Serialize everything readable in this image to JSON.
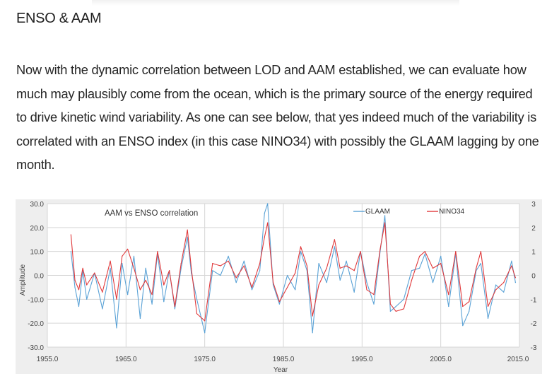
{
  "article": {
    "heading": "ENSO & AAM",
    "paragraph": "Now with the dynamic correlation between LOD and AAM established, we can evaluate how much may plausibly come from the ocean, which is the primary source of the energy required to drive kinetic wind variability. As one can see below, that yes indeed much of the variability is correlated with an ENSO index (in this case NINO34) with possibly the GLAAM lagging by one month."
  },
  "colors": {
    "glaam": "#5aa2d6",
    "nino34": "#e0393b",
    "grid": "#d6d6d6",
    "plot_bg": "#ffffff",
    "frame_bg": "#eeeeee"
  },
  "chart_data": {
    "type": "line",
    "title": "AAM vs ENSO correlation",
    "xlabel": "Year",
    "ylabel": "Amplitude",
    "xlim": [
      1955,
      2015
    ],
    "ylim": [
      -30,
      30
    ],
    "y2lim": [
      -3,
      3
    ],
    "x_ticks": [
      "1955.0",
      "1965.0",
      "1975.0",
      "1985.0",
      "1995.0",
      "2005.0",
      "2015.0"
    ],
    "y_ticks": [
      "30.0",
      "20.0",
      "10.0",
      "0.0",
      "-10.0",
      "-20.0",
      "-30.0"
    ],
    "y2_ticks": [
      "3",
      "2",
      "1",
      "0",
      "-1",
      "-2",
      "-3"
    ],
    "legend": [
      "GLAAM",
      "NINO34"
    ],
    "legend_position": "top-right",
    "grid": true,
    "series": [
      {
        "name": "GLAAM",
        "axis": "left",
        "x": [
          1958.0,
          1958.5,
          1959.0,
          1959.5,
          1960.0,
          1961.0,
          1962.0,
          1963.0,
          1963.8,
          1964.5,
          1965.2,
          1966.0,
          1966.8,
          1967.5,
          1968.3,
          1969.0,
          1969.8,
          1970.5,
          1971.2,
          1972.0,
          1972.8,
          1973.3,
          1974.0,
          1975.0,
          1976.0,
          1977.0,
          1978.0,
          1979.0,
          1980.0,
          1981.0,
          1982.0,
          1982.6,
          1983.0,
          1983.7,
          1984.5,
          1985.5,
          1986.5,
          1987.2,
          1988.0,
          1988.7,
          1989.5,
          1990.5,
          1991.5,
          1992.2,
          1993.0,
          1994.0,
          1994.8,
          1995.6,
          1996.5,
          1997.3,
          1997.9,
          1998.6,
          1999.3,
          2000.3,
          2001.3,
          2002.3,
          2003.0,
          2004.0,
          2005.0,
          2006.0,
          2006.9,
          2007.8,
          2008.6,
          2009.5,
          2010.1,
          2011.0,
          2012.0,
          2013.0,
          2014.0,
          2014.5
        ],
        "values": [
          10,
          -5,
          -13,
          2,
          -10,
          1,
          -14,
          3,
          -22,
          5,
          -8,
          8,
          -18,
          3,
          -12,
          9,
          -11,
          2,
          -14,
          3,
          16,
          1,
          -10,
          -24,
          2,
          0,
          8,
          -3,
          6,
          -6,
          2,
          26,
          31,
          -4,
          -12,
          0,
          -6,
          10,
          2,
          -24,
          5,
          -3,
          12,
          -2,
          6,
          -7,
          10,
          -3,
          -12,
          10,
          25,
          -15,
          -13,
          -10,
          2,
          3,
          9,
          -3,
          8,
          -13,
          9,
          -21,
          -15,
          2,
          5,
          -18,
          -4,
          -7,
          6,
          -3
        ]
      },
      {
        "name": "NINO34",
        "axis": "right",
        "x": [
          1958.0,
          1958.5,
          1959.0,
          1959.5,
          1960.0,
          1961.0,
          1962.0,
          1963.0,
          1963.8,
          1964.5,
          1965.2,
          1966.0,
          1966.8,
          1967.5,
          1968.3,
          1969.0,
          1969.8,
          1970.5,
          1971.2,
          1972.0,
          1972.8,
          1973.3,
          1974.0,
          1975.0,
          1976.0,
          1977.0,
          1978.0,
          1979.0,
          1980.0,
          1981.0,
          1982.0,
          1982.6,
          1983.0,
          1983.7,
          1984.5,
          1985.5,
          1986.5,
          1987.2,
          1988.0,
          1988.7,
          1989.5,
          1990.5,
          1991.5,
          1992.2,
          1993.0,
          1994.0,
          1994.8,
          1995.6,
          1996.5,
          1997.3,
          1997.9,
          1998.6,
          1999.3,
          2000.3,
          2001.3,
          2002.3,
          2003.0,
          2004.0,
          2005.0,
          2006.0,
          2006.9,
          2007.8,
          2008.6,
          2009.5,
          2010.1,
          2011.0,
          2012.0,
          2013.0,
          2014.0,
          2014.5
        ],
        "values": [
          1.7,
          -0.2,
          -0.6,
          0.3,
          -0.4,
          0.1,
          -0.7,
          0.6,
          -1.0,
          0.8,
          1.1,
          0.3,
          -0.6,
          -0.2,
          -0.8,
          1.0,
          -0.4,
          0.2,
          -1.3,
          0.5,
          1.9,
          0.3,
          -1.6,
          -1.9,
          0.5,
          0.4,
          0.6,
          -0.1,
          0.4,
          -0.5,
          0.5,
          1.6,
          2.2,
          -0.3,
          -1.1,
          -0.5,
          0.1,
          1.2,
          0.4,
          -1.7,
          -0.4,
          0.3,
          1.5,
          0.3,
          0.4,
          0.2,
          1.0,
          -0.6,
          -0.8,
          1.1,
          2.2,
          -1.2,
          -1.5,
          -1.4,
          -0.2,
          0.8,
          1.0,
          0.3,
          0.5,
          -0.8,
          1.0,
          -1.3,
          -1.1,
          0.3,
          1.0,
          -1.3,
          -0.6,
          -0.3,
          0.4,
          -0.1
        ]
      }
    ]
  }
}
